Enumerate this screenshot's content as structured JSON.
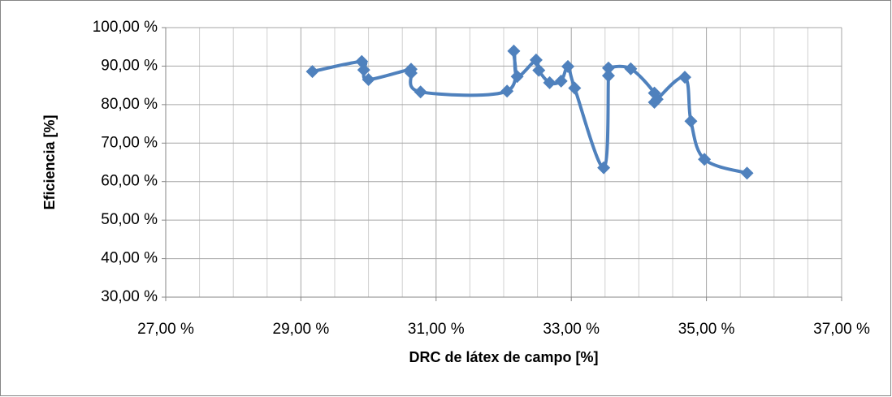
{
  "chart_data": {
    "type": "line",
    "smooth": true,
    "marker": "diamond",
    "x_label": "DRC de látex de campo [%]",
    "y_label": "Eficiencia [%]",
    "x": [
      29.17,
      29.9,
      29.93,
      30.0,
      30.63,
      30.63,
      30.77,
      32.05,
      32.15,
      32.2,
      32.48,
      32.52,
      32.68,
      32.85,
      32.95,
      33.05,
      33.48,
      33.55,
      33.55,
      33.88,
      34.23,
      34.23,
      34.27,
      34.68,
      34.77,
      34.97,
      35.6
    ],
    "series": [
      {
        "color": "#4f81bd",
        "values": [
          88.6,
          91.2,
          89.0,
          86.5,
          89.2,
          88.2,
          83.3,
          83.5,
          93.9,
          87.3,
          91.6,
          88.9,
          85.7,
          86.1,
          89.9,
          84.3,
          63.6,
          87.5,
          89.5,
          89.3,
          83.0,
          80.6,
          81.4,
          87.1,
          75.7,
          65.8,
          62.2
        ]
      }
    ],
    "xlim": [
      27,
      37
    ],
    "xticks": [
      {
        "value": 27,
        "label": "27,00 %"
      },
      {
        "value": 29,
        "label": "29,00 %"
      },
      {
        "value": 31,
        "label": "31,00 %"
      },
      {
        "value": 33,
        "label": "33,00 %"
      },
      {
        "value": 35,
        "label": "35,00 %"
      },
      {
        "value": 37,
        "label": "37,00 %"
      }
    ],
    "ylim": [
      30,
      100
    ],
    "yticks": [
      {
        "value": 30,
        "label": "30,00 %"
      },
      {
        "value": 40,
        "label": "40,00 %"
      },
      {
        "value": 50,
        "label": "50,00 %"
      },
      {
        "value": 60,
        "label": "60,00 %"
      },
      {
        "value": 70,
        "label": "70,00 %"
      },
      {
        "value": 80,
        "label": "80,00 %"
      },
      {
        "value": 90,
        "label": "90,00 %"
      },
      {
        "value": 100,
        "label": "100,00 %"
      }
    ],
    "grid": true
  }
}
